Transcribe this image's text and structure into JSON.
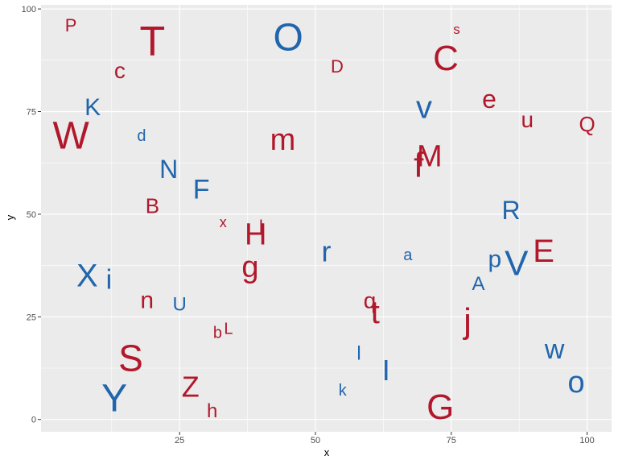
{
  "chart_data": {
    "type": "scatter",
    "xlabel": "x",
    "ylabel": "y",
    "xlim": [
      -0.5,
      104.5
    ],
    "ylim": [
      -3,
      101
    ],
    "x_ticks": [
      25,
      50,
      75,
      100
    ],
    "y_ticks": [
      0,
      25,
      50,
      75,
      100
    ],
    "grid": true,
    "legend": "none",
    "colors": {
      "red": "#b2182b",
      "blue": "#2166ac",
      "panel": "#ebebeb",
      "grid": "#ffffff"
    },
    "points": [
      {
        "label": "P",
        "x": 5,
        "y": 96,
        "size": 22,
        "color": "red"
      },
      {
        "label": "T",
        "x": 20,
        "y": 92,
        "size": 52,
        "color": "red"
      },
      {
        "label": "O",
        "x": 45,
        "y": 93,
        "size": 48,
        "color": "blue"
      },
      {
        "label": "s",
        "x": 76,
        "y": 95,
        "size": 17,
        "color": "red"
      },
      {
        "label": "c",
        "x": 14,
        "y": 85,
        "size": 28,
        "color": "red"
      },
      {
        "label": "D",
        "x": 54,
        "y": 86,
        "size": 22,
        "color": "red"
      },
      {
        "label": "C",
        "x": 74,
        "y": 88,
        "size": 44,
        "color": "red"
      },
      {
        "label": "K",
        "x": 9,
        "y": 76,
        "size": 30,
        "color": "blue"
      },
      {
        "label": "v",
        "x": 70,
        "y": 76,
        "size": 40,
        "color": "blue"
      },
      {
        "label": "e",
        "x": 82,
        "y": 78,
        "size": 32,
        "color": "red"
      },
      {
        "label": "W",
        "x": 5,
        "y": 69,
        "size": 48,
        "color": "red"
      },
      {
        "label": "u",
        "x": 89,
        "y": 73,
        "size": 28,
        "color": "red"
      },
      {
        "label": "Q",
        "x": 100,
        "y": 72,
        "size": 26,
        "color": "red"
      },
      {
        "label": "d",
        "x": 18,
        "y": 69,
        "size": 20,
        "color": "blue"
      },
      {
        "label": "m",
        "x": 44,
        "y": 68,
        "size": 38,
        "color": "red"
      },
      {
        "label": "f",
        "x": 69,
        "y": 62,
        "size": 44,
        "color": "red"
      },
      {
        "label": "M",
        "x": 71,
        "y": 64,
        "size": 38,
        "color": "red"
      },
      {
        "label": "N",
        "x": 23,
        "y": 61,
        "size": 32,
        "color": "blue"
      },
      {
        "label": "F",
        "x": 29,
        "y": 56,
        "size": 34,
        "color": "blue"
      },
      {
        "label": "B",
        "x": 20,
        "y": 52,
        "size": 26,
        "color": "red"
      },
      {
        "label": "R",
        "x": 86,
        "y": 51,
        "size": 32,
        "color": "blue"
      },
      {
        "label": "x",
        "x": 33,
        "y": 48,
        "size": 18,
        "color": "red"
      },
      {
        "label": "l",
        "x": 40,
        "y": 47,
        "size": 22,
        "color": "red"
      },
      {
        "label": "H",
        "x": 39,
        "y": 45,
        "size": 38,
        "color": "red"
      },
      {
        "label": "r",
        "x": 52,
        "y": 41,
        "size": 36,
        "color": "blue"
      },
      {
        "label": "a",
        "x": 67,
        "y": 40,
        "size": 20,
        "color": "blue"
      },
      {
        "label": "E",
        "x": 92,
        "y": 41,
        "size": 40,
        "color": "red"
      },
      {
        "label": "p",
        "x": 83,
        "y": 39,
        "size": 30,
        "color": "blue"
      },
      {
        "label": "V",
        "x": 87,
        "y": 38,
        "size": 44,
        "color": "blue"
      },
      {
        "label": "g",
        "x": 38,
        "y": 37,
        "size": 38,
        "color": "red"
      },
      {
        "label": "X",
        "x": 8,
        "y": 35,
        "size": 40,
        "color": "blue"
      },
      {
        "label": "i",
        "x": 12,
        "y": 34,
        "size": 34,
        "color": "blue"
      },
      {
        "label": "A",
        "x": 80,
        "y": 33,
        "size": 24,
        "color": "blue"
      },
      {
        "label": "n",
        "x": 19,
        "y": 29,
        "size": 30,
        "color": "red"
      },
      {
        "label": "U",
        "x": 25,
        "y": 28,
        "size": 24,
        "color": "blue"
      },
      {
        "label": "q",
        "x": 60,
        "y": 29,
        "size": 28,
        "color": "red"
      },
      {
        "label": "t",
        "x": 61,
        "y": 26,
        "size": 40,
        "color": "red"
      },
      {
        "label": "j",
        "x": 78,
        "y": 24,
        "size": 44,
        "color": "red"
      },
      {
        "label": "b",
        "x": 32,
        "y": 21,
        "size": 20,
        "color": "red"
      },
      {
        "label": "L",
        "x": 34,
        "y": 22,
        "size": 20,
        "color": "red"
      },
      {
        "label": "l",
        "x": 58,
        "y": 16,
        "size": 24,
        "color": "blue"
      },
      {
        "label": "w",
        "x": 94,
        "y": 17,
        "size": 34,
        "color": "blue"
      },
      {
        "label": "S",
        "x": 16,
        "y": 15,
        "size": 46,
        "color": "red"
      },
      {
        "label": "I",
        "x": 63,
        "y": 12,
        "size": 36,
        "color": "blue"
      },
      {
        "label": "o",
        "x": 98,
        "y": 9,
        "size": 38,
        "color": "blue"
      },
      {
        "label": "Z",
        "x": 27,
        "y": 8,
        "size": 36,
        "color": "red"
      },
      {
        "label": "k",
        "x": 55,
        "y": 7,
        "size": 20,
        "color": "blue"
      },
      {
        "label": "Y",
        "x": 13,
        "y": 5,
        "size": 48,
        "color": "blue"
      },
      {
        "label": "G",
        "x": 73,
        "y": 3,
        "size": 44,
        "color": "red"
      },
      {
        "label": "h",
        "x": 31,
        "y": 2,
        "size": 24,
        "color": "red"
      }
    ]
  }
}
